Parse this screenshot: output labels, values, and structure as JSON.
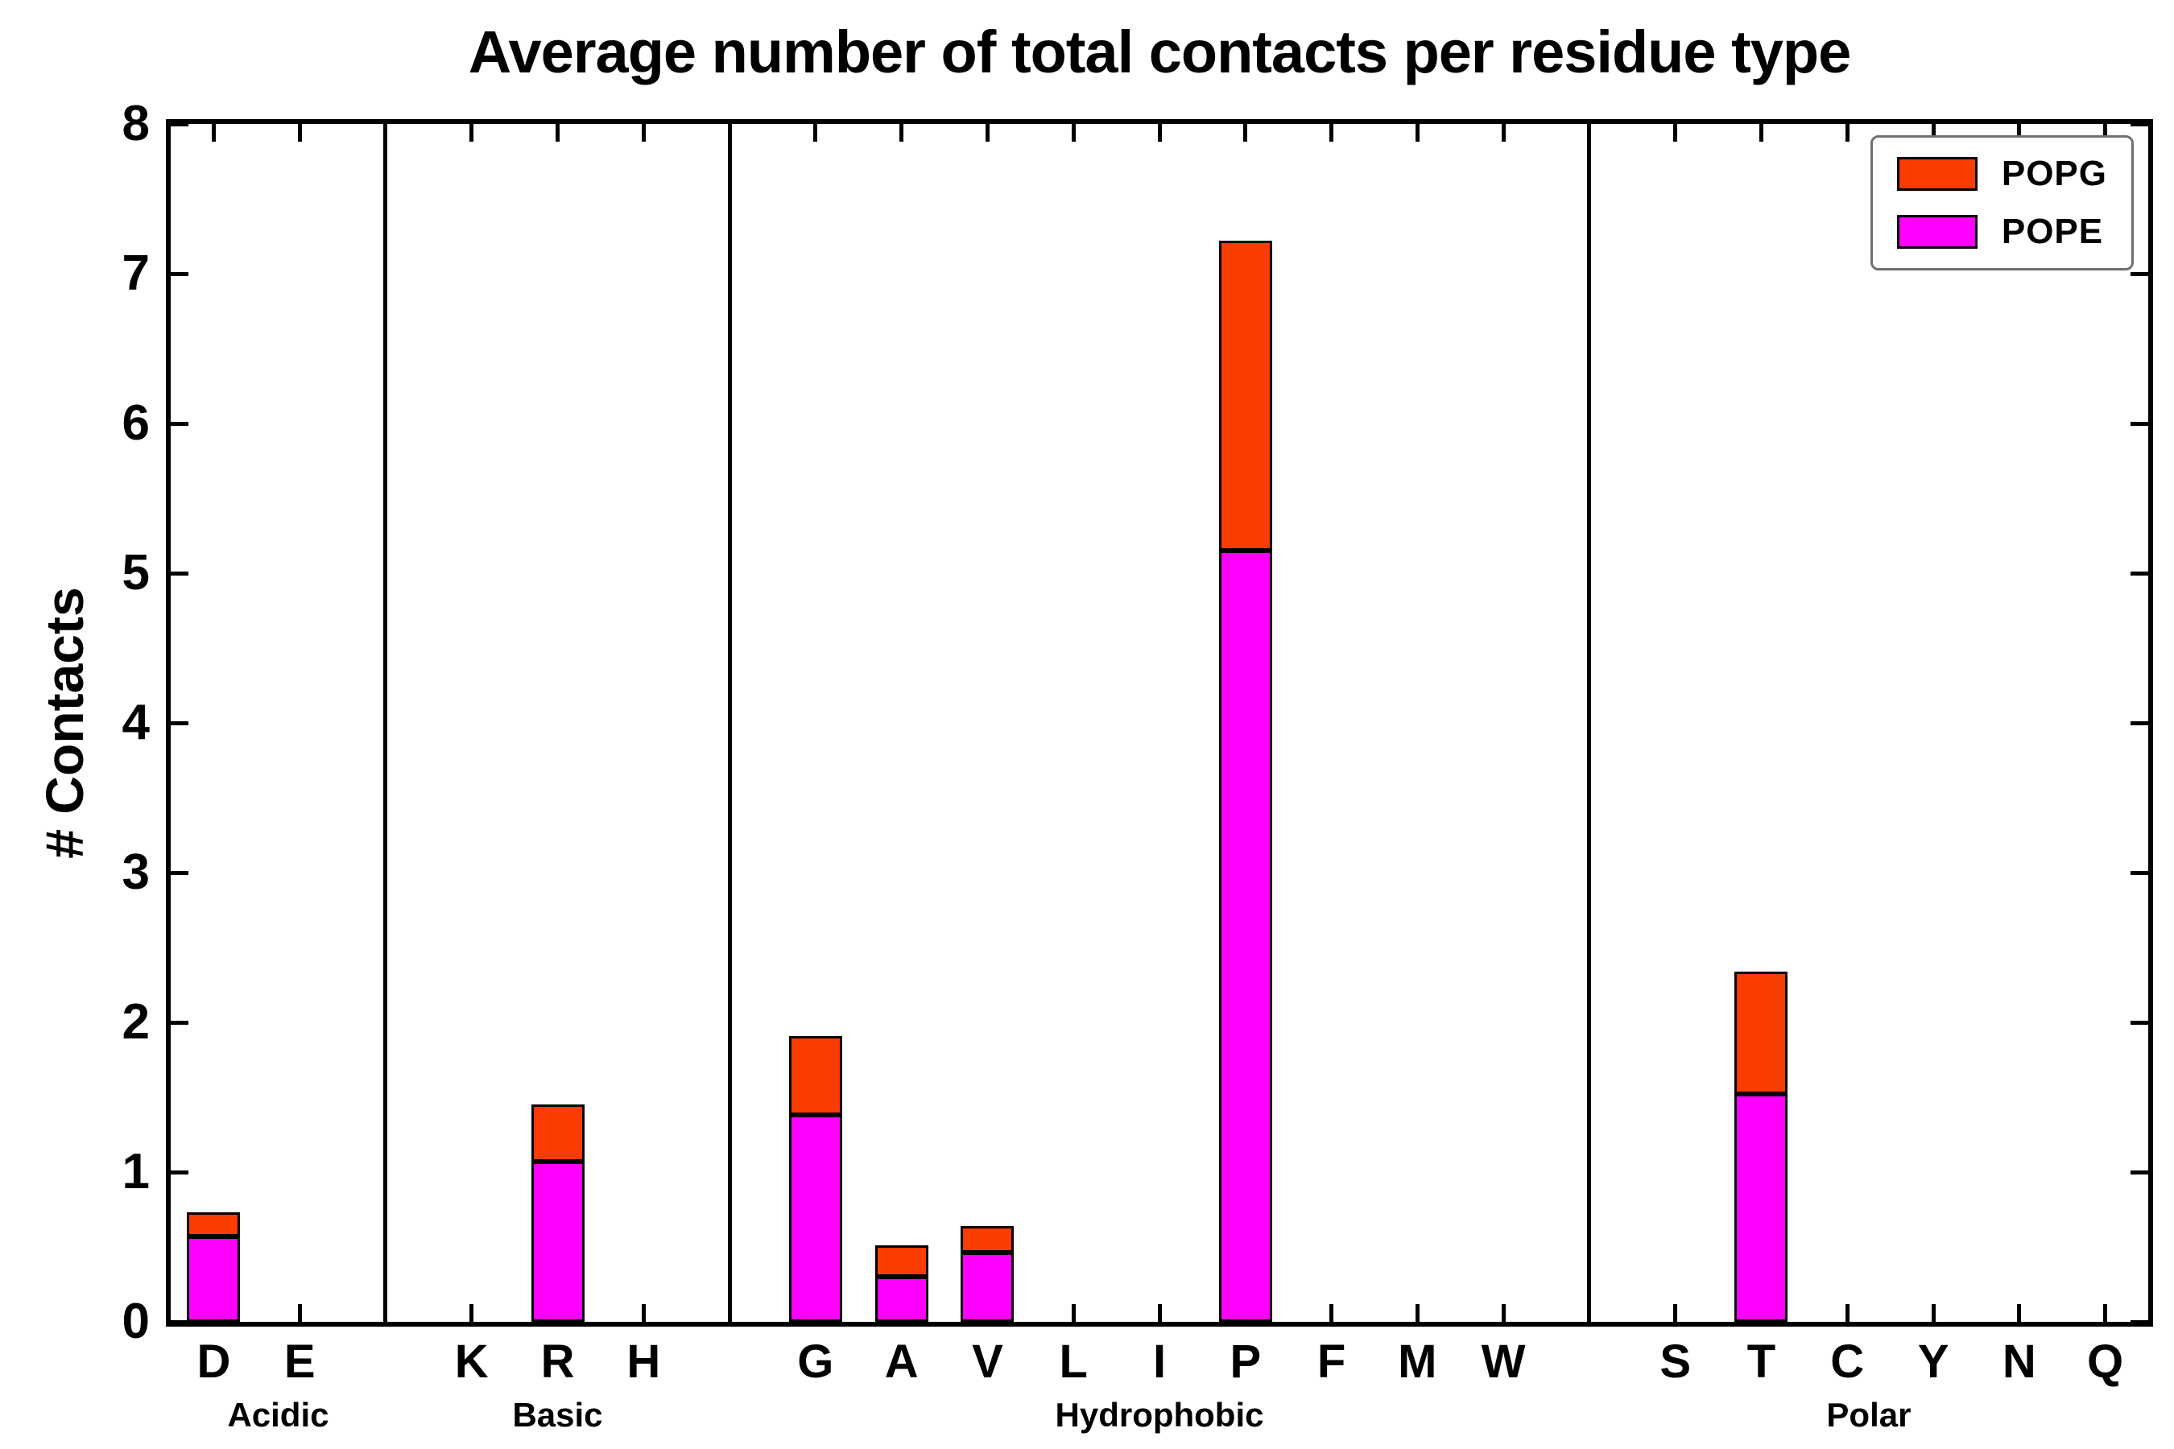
{
  "chart_data": {
    "type": "bar",
    "stacked": true,
    "title": "Average number of total contacts per residue type",
    "xlabel": "",
    "ylabel": "# Contacts",
    "ylim": [
      0,
      8
    ],
    "yticks": [
      0,
      1,
      2,
      3,
      4,
      5,
      6,
      7,
      8
    ],
    "grid": false,
    "groups": [
      {
        "label": "Acidic",
        "categories": [
          "D",
          "E"
        ]
      },
      {
        "label": "Basic",
        "categories": [
          "K",
          "R",
          "H"
        ]
      },
      {
        "label": "Hydrophobic",
        "categories": [
          "G",
          "A",
          "V",
          "L",
          "I",
          "P",
          "F",
          "M",
          "W"
        ]
      },
      {
        "label": "Polar",
        "categories": [
          "S",
          "T",
          "C",
          "Y",
          "N",
          "Q"
        ]
      }
    ],
    "categories": [
      "D",
      "E",
      "K",
      "R",
      "H",
      "G",
      "A",
      "V",
      "L",
      "I",
      "P",
      "F",
      "M",
      "W",
      "S",
      "T",
      "C",
      "Y",
      "N",
      "Q"
    ],
    "series": [
      {
        "name": "POPE",
        "color": "#ff00ff",
        "values": [
          0.57,
          0,
          0,
          1.07,
          0,
          1.38,
          0.3,
          0.46,
          0,
          0,
          5.15,
          0,
          0,
          0,
          0,
          1.52,
          0,
          0,
          0,
          0
        ]
      },
      {
        "name": "POPG",
        "color": "#fa3c00",
        "values": [
          0.16,
          0,
          0,
          0.38,
          0,
          0.53,
          0.21,
          0.18,
          0,
          0,
          2.07,
          0,
          0,
          0,
          0,
          0.82,
          0,
          0,
          0,
          0
        ]
      }
    ],
    "legend": {
      "position": "upper right",
      "entries": [
        "POPG",
        "POPE"
      ]
    }
  }
}
